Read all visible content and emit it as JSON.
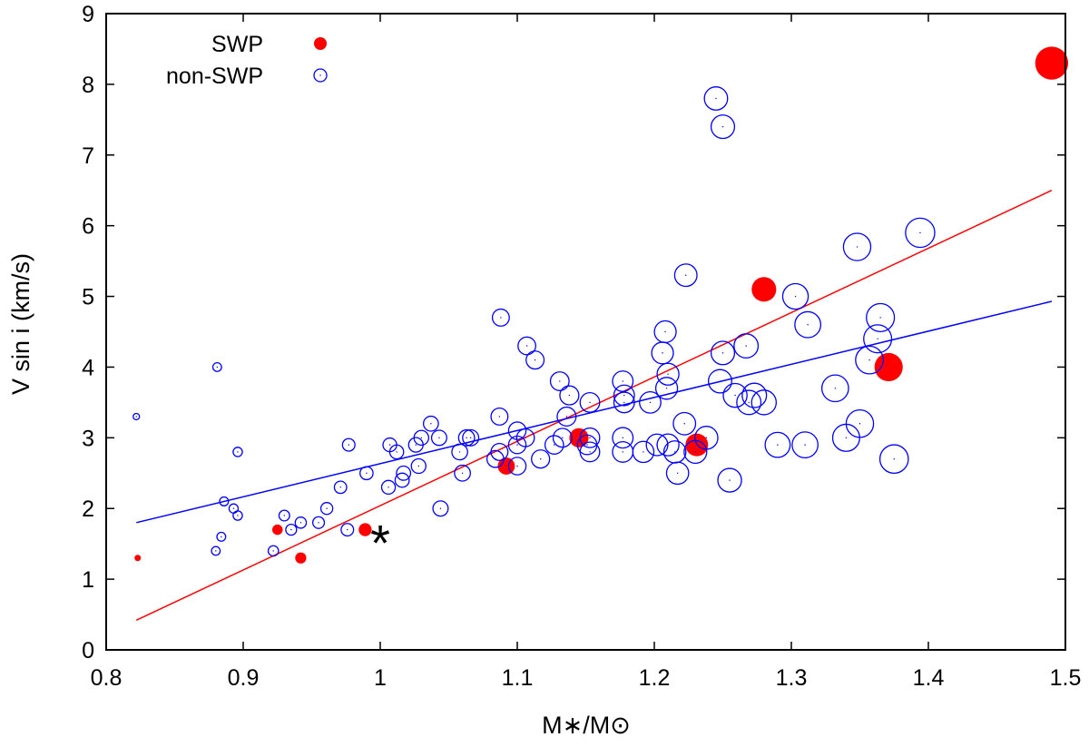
{
  "chart_data": {
    "type": "scatter",
    "xlabel": "M∗/M⊙",
    "ylabel": "V sin i (km/s)",
    "xlim": [
      0.8,
      1.5
    ],
    "ylim": [
      0,
      9
    ],
    "xticks": [
      "0.8",
      "0.9",
      "1",
      "1.1",
      "1.2",
      "1.3",
      "1.4",
      "1.5"
    ],
    "yticks": [
      "0",
      "1",
      "2",
      "3",
      "4",
      "5",
      "6",
      "7",
      "8",
      "9"
    ],
    "grid": false,
    "legend_position": "top-left",
    "series": [
      {
        "name": "SWP",
        "color": "#ff0000",
        "marker": "filled-circle",
        "fit_line": {
          "x": [
            0.822,
            1.49
          ],
          "y": [
            0.42,
            6.5
          ]
        },
        "points": [
          {
            "x": 0.823,
            "y": 1.3
          },
          {
            "x": 0.925,
            "y": 1.7
          },
          {
            "x": 0.942,
            "y": 1.3
          },
          {
            "x": 0.989,
            "y": 1.7
          },
          {
            "x": 1.092,
            "y": 2.6
          },
          {
            "x": 1.145,
            "y": 3.0
          },
          {
            "x": 1.231,
            "y": 2.9
          },
          {
            "x": 1.28,
            "y": 5.1
          },
          {
            "x": 1.371,
            "y": 4.0
          },
          {
            "x": 1.49,
            "y": 8.3
          }
        ]
      },
      {
        "name": "non-SWP",
        "color": "#0000ff",
        "marker": "open-circle",
        "fit_line": {
          "x": [
            0.822,
            1.49
          ],
          "y": [
            1.8,
            4.93
          ]
        },
        "points": [
          {
            "x": 0.822,
            "y": 3.3
          },
          {
            "x": 0.881,
            "y": 4.0
          },
          {
            "x": 0.88,
            "y": 1.4
          },
          {
            "x": 0.884,
            "y": 1.6
          },
          {
            "x": 0.886,
            "y": 2.1
          },
          {
            "x": 0.893,
            "y": 2.0
          },
          {
            "x": 0.896,
            "y": 1.9
          },
          {
            "x": 0.896,
            "y": 2.8
          },
          {
            "x": 0.922,
            "y": 1.4
          },
          {
            "x": 0.93,
            "y": 1.9
          },
          {
            "x": 0.935,
            "y": 1.7
          },
          {
            "x": 0.942,
            "y": 1.8
          },
          {
            "x": 0.955,
            "y": 1.8
          },
          {
            "x": 0.961,
            "y": 2.0
          },
          {
            "x": 0.971,
            "y": 2.3
          },
          {
            "x": 0.976,
            "y": 1.7
          },
          {
            "x": 0.977,
            "y": 2.9
          },
          {
            "x": 0.99,
            "y": 2.5
          },
          {
            "x": 1.006,
            "y": 2.3
          },
          {
            "x": 1.007,
            "y": 2.9
          },
          {
            "x": 1.012,
            "y": 2.8
          },
          {
            "x": 1.016,
            "y": 2.4
          },
          {
            "x": 1.017,
            "y": 2.5
          },
          {
            "x": 1.026,
            "y": 2.9
          },
          {
            "x": 1.03,
            "y": 3.0
          },
          {
            "x": 1.028,
            "y": 2.6
          },
          {
            "x": 1.037,
            "y": 3.2
          },
          {
            "x": 1.043,
            "y": 3.0
          },
          {
            "x": 1.044,
            "y": 2.0
          },
          {
            "x": 1.058,
            "y": 2.8
          },
          {
            "x": 1.06,
            "y": 2.5
          },
          {
            "x": 1.063,
            "y": 3.0
          },
          {
            "x": 1.066,
            "y": 3.0
          },
          {
            "x": 1.084,
            "y": 2.7
          },
          {
            "x": 1.087,
            "y": 2.8
          },
          {
            "x": 1.087,
            "y": 3.3
          },
          {
            "x": 1.088,
            "y": 4.7
          },
          {
            "x": 1.1,
            "y": 2.6
          },
          {
            "x": 1.1,
            "y": 2.9
          },
          {
            "x": 1.1,
            "y": 3.1
          },
          {
            "x": 1.106,
            "y": 3.0
          },
          {
            "x": 1.107,
            "y": 4.3
          },
          {
            "x": 1.113,
            "y": 4.1
          },
          {
            "x": 1.117,
            "y": 2.7
          },
          {
            "x": 1.127,
            "y": 2.9
          },
          {
            "x": 1.131,
            "y": 3.8
          },
          {
            "x": 1.133,
            "y": 3.0
          },
          {
            "x": 1.136,
            "y": 3.3
          },
          {
            "x": 1.138,
            "y": 3.6
          },
          {
            "x": 1.151,
            "y": 2.9
          },
          {
            "x": 1.153,
            "y": 3.0
          },
          {
            "x": 1.153,
            "y": 2.8
          },
          {
            "x": 1.153,
            "y": 3.5
          },
          {
            "x": 1.177,
            "y": 2.8
          },
          {
            "x": 1.177,
            "y": 3.0
          },
          {
            "x": 1.177,
            "y": 3.8
          },
          {
            "x": 1.178,
            "y": 3.6
          },
          {
            "x": 1.178,
            "y": 3.5
          },
          {
            "x": 1.192,
            "y": 2.8
          },
          {
            "x": 1.197,
            "y": 3.5
          },
          {
            "x": 1.202,
            "y": 2.9
          },
          {
            "x": 1.206,
            "y": 4.2
          },
          {
            "x": 1.208,
            "y": 4.5
          },
          {
            "x": 1.209,
            "y": 3.7
          },
          {
            "x": 1.21,
            "y": 3.9
          },
          {
            "x": 1.21,
            "y": 2.9
          },
          {
            "x": 1.215,
            "y": 2.8
          },
          {
            "x": 1.217,
            "y": 2.5
          },
          {
            "x": 1.222,
            "y": 3.2
          },
          {
            "x": 1.223,
            "y": 5.3
          },
          {
            "x": 1.23,
            "y": 2.8
          },
          {
            "x": 1.238,
            "y": 3.0
          },
          {
            "x": 1.245,
            "y": 7.8
          },
          {
            "x": 1.248,
            "y": 3.8
          },
          {
            "x": 1.25,
            "y": 4.2
          },
          {
            "x": 1.25,
            "y": 7.4
          },
          {
            "x": 1.255,
            "y": 2.4
          },
          {
            "x": 1.259,
            "y": 3.6
          },
          {
            "x": 1.267,
            "y": 4.3
          },
          {
            "x": 1.269,
            "y": 3.5
          },
          {
            "x": 1.273,
            "y": 3.6
          },
          {
            "x": 1.28,
            "y": 3.5
          },
          {
            "x": 1.29,
            "y": 2.9
          },
          {
            "x": 1.303,
            "y": 5.0
          },
          {
            "x": 1.31,
            "y": 2.9
          },
          {
            "x": 1.312,
            "y": 4.6
          },
          {
            "x": 1.332,
            "y": 3.7
          },
          {
            "x": 1.34,
            "y": 3.0
          },
          {
            "x": 1.348,
            "y": 5.7
          },
          {
            "x": 1.35,
            "y": 3.2
          },
          {
            "x": 1.357,
            "y": 4.1
          },
          {
            "x": 1.363,
            "y": 4.4
          },
          {
            "x": 1.365,
            "y": 4.7
          },
          {
            "x": 1.375,
            "y": 2.7
          },
          {
            "x": 1.394,
            "y": 5.9
          }
        ]
      }
    ],
    "annotations": [
      {
        "label": "sun-asterisk",
        "text": "*",
        "x": 1.0,
        "y": 1.6
      }
    ]
  }
}
